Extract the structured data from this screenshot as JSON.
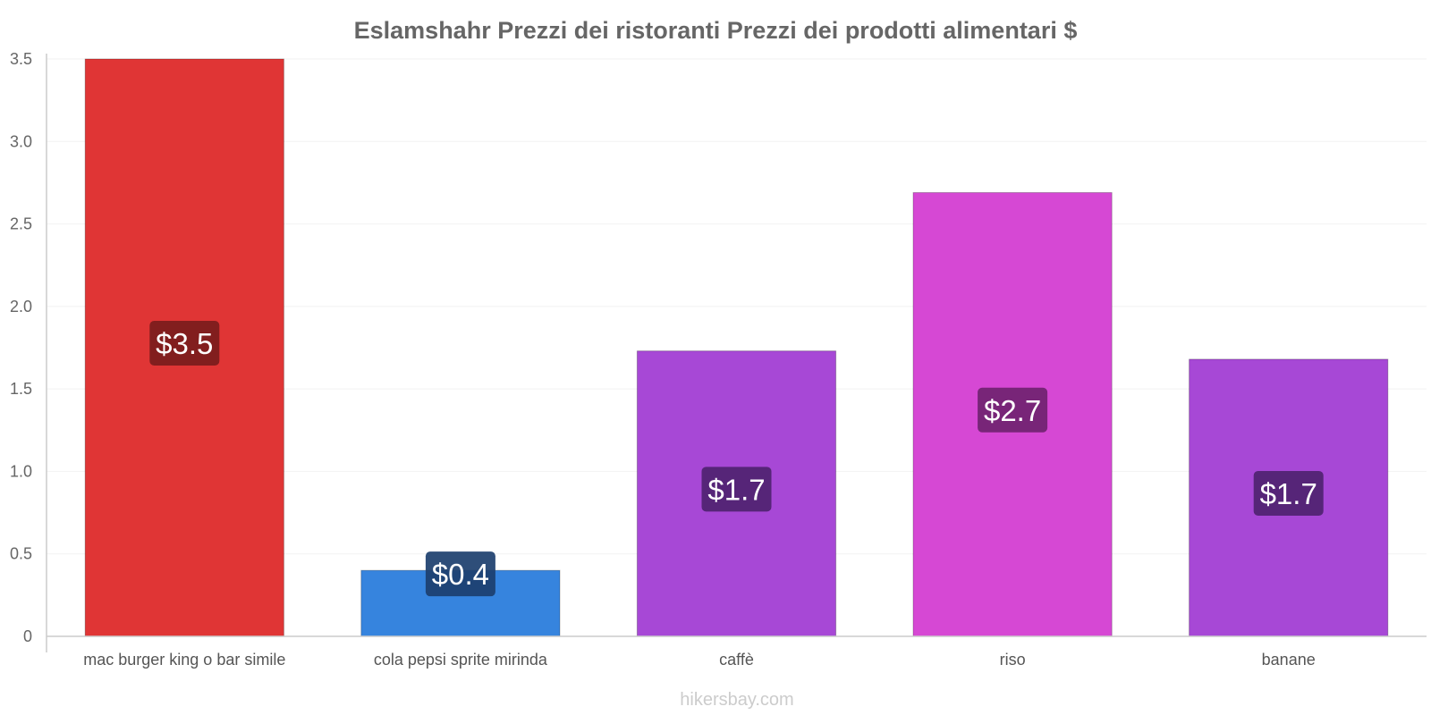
{
  "chart_data": {
    "type": "bar",
    "title": "Eslamshahr Prezzi dei ristoranti Prezzi dei prodotti alimentari $",
    "categories": [
      "mac burger king o bar simile",
      "cola pepsi sprite mirinda",
      "caffè",
      "riso",
      "banane"
    ],
    "values": [
      3.5,
      0.4,
      1.73,
      2.69,
      1.68
    ],
    "data_labels": [
      "$3.5",
      "$0.4",
      "$1.7",
      "$2.7",
      "$1.7"
    ],
    "bar_colors": [
      "#e03535",
      "#3684de",
      "#a748d6",
      "#d648d4",
      "#a748d6"
    ],
    "label_bg_colors": [
      "#7a1c1c",
      "#1c3f6e",
      "#4f2370",
      "#702370",
      "#4f2370"
    ],
    "ylim": [
      0,
      3.5
    ],
    "yticks": [
      0,
      0.5,
      1.0,
      1.5,
      2.0,
      2.5,
      3.0,
      3.5
    ],
    "ytick_labels": [
      "0",
      "0.5",
      "1.0",
      "1.5",
      "2.0",
      "2.5",
      "3.0",
      "3.5"
    ],
    "xlabel": "",
    "ylabel": "",
    "grid": true
  },
  "footer": "hikersbay.com"
}
